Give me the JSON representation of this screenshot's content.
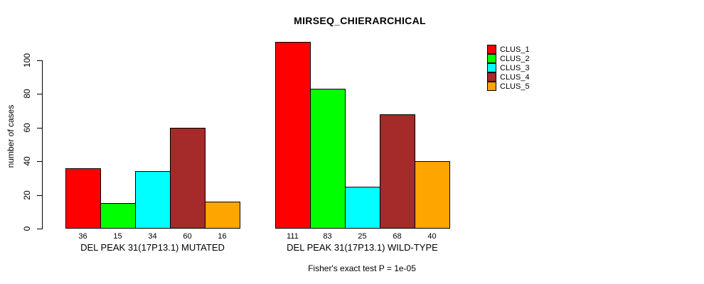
{
  "chart_data": {
    "type": "bar",
    "title": "MIRSEQ_CHIERARCHICAL",
    "ylabel": "number of cases",
    "xlabel": "",
    "footnote": "Fisher's exact test P = 1e-05",
    "ylim": [
      0,
      100
    ],
    "yticks": [
      0,
      20,
      40,
      60,
      80,
      100
    ],
    "grid": false,
    "legend_position": "right",
    "series": [
      {
        "name": "CLUS_1",
        "color": "#FF0000"
      },
      {
        "name": "CLUS_2",
        "color": "#00FF00"
      },
      {
        "name": "CLUS_3",
        "color": "#00FFFF"
      },
      {
        "name": "CLUS_4",
        "color": "#A52A2A"
      },
      {
        "name": "CLUS_5",
        "color": "#FFA500"
      }
    ],
    "groups": [
      {
        "label": "DEL PEAK 31(17P13.1) MUTATED",
        "values": [
          36,
          15,
          34,
          60,
          16
        ]
      },
      {
        "label": "DEL PEAK 31(17P13.1) WILD-TYPE",
        "values": [
          111,
          83,
          25,
          68,
          40
        ]
      }
    ],
    "bar_value_labels_shown": true
  }
}
